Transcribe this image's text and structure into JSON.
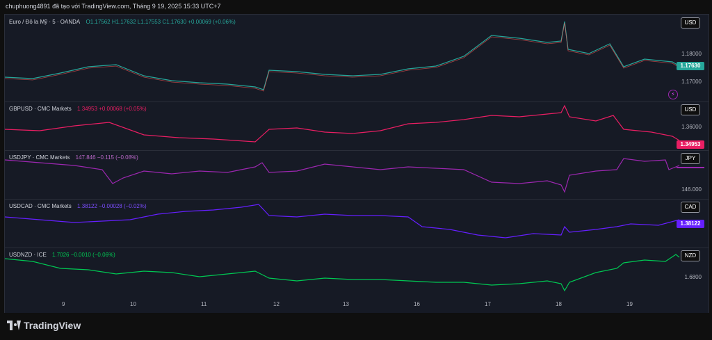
{
  "header": {
    "text": "chuphuong4891 đã tạo với TradingView.com, Tháng 9 19, 2025 15:33 UTC+7"
  },
  "colors": {
    "background": "#161a25",
    "green": "#26a69a",
    "red": "#ef5350",
    "gbp": "#e91e63",
    "jpy": "#9c27b0",
    "cad": "#651fff",
    "nzd": "#00c853"
  },
  "panes": [
    {
      "symbol": "Euro / Đô la Mỹ · 5 · OANDA",
      "ohlc": "O1.17562  H1.17632  L1.17553  C1.17630  +0.00069 (+0.06%)",
      "currency": "USD",
      "ticks": [
        "1.18000",
        "1.17000"
      ],
      "last_price": "1.17630"
    },
    {
      "symbol": "GBPUSD · CMC Markets",
      "ohlc": "1.34953  +0.00068 (+0.05%)",
      "currency": "USD",
      "ticks": [
        "1.36000"
      ],
      "last_price": "1.34953"
    },
    {
      "symbol": "USDJPY · CMC Markets",
      "ohlc": "147.846  −0.115 (−0.08%)",
      "currency": "JPY",
      "ticks": [
        "146.000"
      ],
      "last_price": ""
    },
    {
      "symbol": "USDCAD · CMC Markets",
      "ohlc": "1.38122  −0.00028 (−0.02%)",
      "currency": "CAD",
      "ticks": [],
      "last_price": "1.38122"
    },
    {
      "symbol": "USDNZD · ICE",
      "ohlc": "1.7026  −0.0010 (−0.06%)",
      "currency": "NZD",
      "ticks": [
        "1.6800"
      ],
      "last_price": ""
    }
  ],
  "x_axis": [
    "9",
    "10",
    "11",
    "12",
    "13",
    "16",
    "17",
    "18",
    "19"
  ],
  "footer": {
    "brand": "TradingView"
  },
  "icons": {
    "bolt": "lightning-icon",
    "logo": "tradingview-logo-icon"
  }
}
